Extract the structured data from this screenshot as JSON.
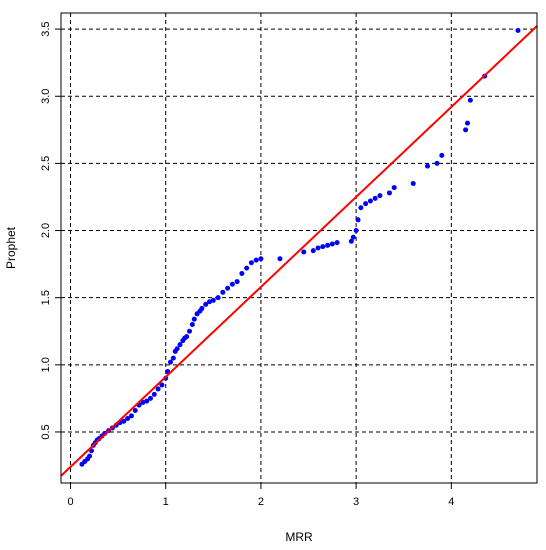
{
  "chart_data": {
    "type": "scatter",
    "xlabel": "MRR",
    "ylabel": "Prophet",
    "xlim": [
      -0.1,
      4.9
    ],
    "ylim": [
      0.12,
      3.62
    ],
    "xticks": [
      0,
      1,
      2,
      3,
      4
    ],
    "xtick_labels": [
      "0",
      "1",
      "2",
      "3",
      "4"
    ],
    "yticks": [
      0.5,
      1.0,
      1.5,
      2.0,
      2.5,
      3.0,
      3.5
    ],
    "ytick_labels": [
      "0.5",
      "1.0",
      "1.5",
      "2.0",
      "2.5",
      "3.0",
      "3.5"
    ],
    "grid": true,
    "colors": {
      "points": "#0000ff",
      "line": "#ff0000",
      "grid": "#000000"
    },
    "fit_line": {
      "slope": 0.67,
      "intercept": 0.24
    },
    "series": [
      {
        "x": [
          0.12,
          0.15,
          0.18,
          0.2,
          0.22,
          0.24,
          0.26,
          0.28,
          0.3,
          0.33,
          0.36,
          0.4,
          0.44,
          0.48,
          0.52,
          0.56,
          0.6,
          0.64,
          0.68,
          0.72,
          0.76,
          0.8,
          0.84,
          0.88,
          0.92,
          0.96,
          1.0,
          1.02,
          1.05,
          1.08,
          1.1,
          1.12,
          1.15,
          1.18,
          1.2,
          1.22,
          1.25,
          1.28,
          1.3,
          1.33,
          1.36,
          1.38,
          1.42,
          1.46,
          1.5,
          1.55,
          1.6,
          1.65,
          1.7,
          1.75,
          1.8,
          1.85,
          1.9,
          1.95,
          2.0,
          2.2,
          2.45,
          2.55,
          2.6,
          2.65,
          2.7,
          2.75,
          2.8,
          2.95,
          2.97,
          3.0,
          3.02,
          3.05,
          3.1,
          3.15,
          3.2,
          3.25,
          3.35,
          3.4,
          3.6,
          3.75,
          3.85,
          3.9,
          4.15,
          4.17,
          4.2,
          4.35,
          4.7
        ],
        "y": [
          0.26,
          0.28,
          0.3,
          0.32,
          0.36,
          0.4,
          0.42,
          0.44,
          0.45,
          0.47,
          0.49,
          0.51,
          0.53,
          0.55,
          0.57,
          0.58,
          0.6,
          0.62,
          0.66,
          0.7,
          0.72,
          0.73,
          0.75,
          0.78,
          0.82,
          0.85,
          0.9,
          0.95,
          1.02,
          1.05,
          1.1,
          1.12,
          1.15,
          1.18,
          1.2,
          1.21,
          1.25,
          1.3,
          1.34,
          1.38,
          1.4,
          1.42,
          1.45,
          1.47,
          1.48,
          1.5,
          1.54,
          1.57,
          1.6,
          1.62,
          1.68,
          1.72,
          1.76,
          1.78,
          1.79,
          1.79,
          1.84,
          1.85,
          1.87,
          1.88,
          1.89,
          1.9,
          1.91,
          1.92,
          1.95,
          2.0,
          2.08,
          2.17,
          2.2,
          2.22,
          2.24,
          2.26,
          2.28,
          2.32,
          2.35,
          2.48,
          2.5,
          2.56,
          2.75,
          2.8,
          2.97,
          3.15,
          3.49
        ]
      }
    ]
  }
}
